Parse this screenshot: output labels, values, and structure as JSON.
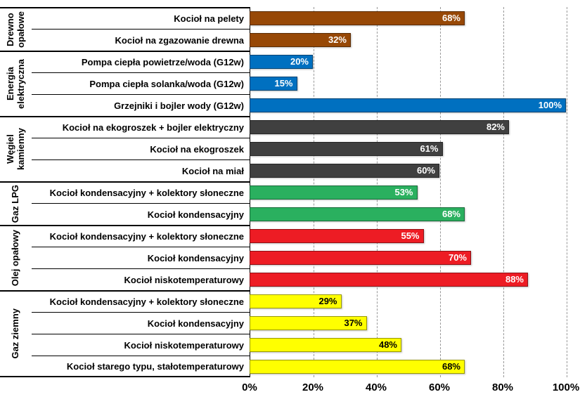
{
  "chart_data": {
    "type": "bar",
    "orientation": "horizontal",
    "title": "",
    "xlabel": "",
    "ylabel": "",
    "xlim": [
      0,
      100
    ],
    "x_ticks": [
      "0%",
      "20%",
      "40%",
      "60%",
      "80%",
      "100%"
    ],
    "grid": true,
    "gridline_color": "#999999",
    "axis_color": "#000000",
    "groups": [
      {
        "name": "Drewno opałowe",
        "color": "#974806",
        "value_text_color": "#FFFFFF",
        "items": [
          {
            "label": "Kocioł na pelety",
            "value": 68,
            "value_label": "68%"
          },
          {
            "label": "Kocioł na zgazowanie drewna",
            "value": 32,
            "value_label": "32%"
          }
        ]
      },
      {
        "name": "Energia elektryczna",
        "color": "#0070C0",
        "value_text_color": "#FFFFFF",
        "items": [
          {
            "label": "Pompa ciepła powietrze/woda (G12w)",
            "value": 20,
            "value_label": "20%"
          },
          {
            "label": "Pompa ciepła solanka/woda (G12w)",
            "value": 15,
            "value_label": "15%"
          },
          {
            "label": "Grzejniki i bojler wody (G12w)",
            "value": 100,
            "value_label": "100%"
          }
        ]
      },
      {
        "name": "Węgiel kamienny",
        "color": "#404040",
        "value_text_color": "#FFFFFF",
        "items": [
          {
            "label": "Kocioł na ekogroszek + bojler elektryczny",
            "value": 82,
            "value_label": "82%"
          },
          {
            "label": "Kocioł na ekogroszek",
            "value": 61,
            "value_label": "61%"
          },
          {
            "label": "Kocioł na miał",
            "value": 60,
            "value_label": "60%"
          }
        ]
      },
      {
        "name": "Gaz LPG",
        "color": "#2AB05F",
        "value_text_color": "#FFFFFF",
        "items": [
          {
            "label": "Kocioł kondensacyjny + kolektory słoneczne",
            "value": 53,
            "value_label": "53%"
          },
          {
            "label": "Kocioł kondensacyjny",
            "value": 68,
            "value_label": "68%"
          }
        ]
      },
      {
        "name": "Olej opałowy",
        "color": "#ED1C24",
        "value_text_color": "#FFFFFF",
        "items": [
          {
            "label": "Kocioł kondensacyjny + kolektory słoneczne",
            "value": 55,
            "value_label": "55%"
          },
          {
            "label": "Kocioł kondensacyjny",
            "value": 70,
            "value_label": "70%"
          },
          {
            "label": "Kocioł niskotemperaturowy",
            "value": 88,
            "value_label": "88%"
          }
        ]
      },
      {
        "name": "Gaz ziemny",
        "color": "#FFFF00",
        "value_text_color": "#000000",
        "items": [
          {
            "label": "Kocioł kondensacyjny + kolektory słoneczne",
            "value": 29,
            "value_label": "29%"
          },
          {
            "label": "Kocioł kondensacyjny",
            "value": 37,
            "value_label": "37%"
          },
          {
            "label": "Kocioł niskotemperaturowy",
            "value": 48,
            "value_label": "48%"
          },
          {
            "label": "Kocioł starego typu, stałotemperaturowy",
            "value": 68,
            "value_label": "68%"
          }
        ]
      }
    ]
  }
}
